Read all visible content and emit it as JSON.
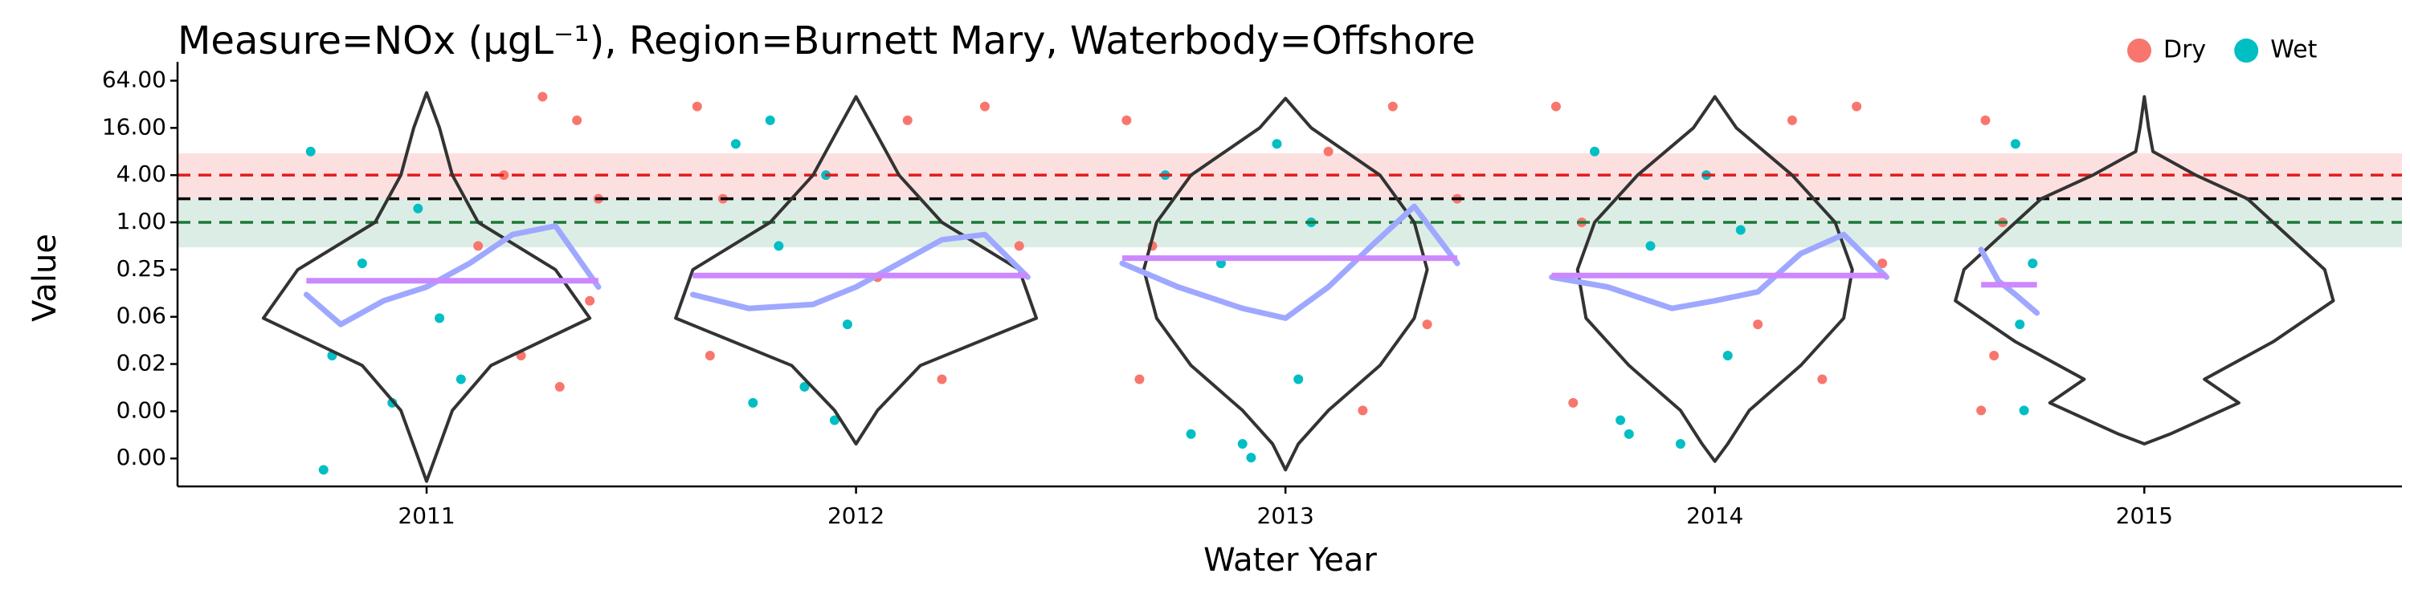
{
  "chart_data": {
    "type": "scatter",
    "title": "Measure=NOx (μgL⁻¹), Region=Burnett Mary, Waterbody=Offshore",
    "xlabel": "Water Year",
    "ylabel": "Value",
    "yscale": "log2",
    "legend": "top-right",
    "xlim": [
      2010.42,
      2015.6
    ],
    "xticks": [
      2011,
      2012,
      2013,
      2014,
      2015
    ],
    "ylim": [
      0.00043,
      88
    ],
    "yticks": [
      {
        "value": 64,
        "label": "64.00"
      },
      {
        "value": 16,
        "label": "16.00"
      },
      {
        "value": 4,
        "label": "4.00"
      },
      {
        "value": 1,
        "label": "1.00"
      },
      {
        "value": 0.25,
        "label": "0.25"
      },
      {
        "value": 0.0625,
        "label": "0.06"
      },
      {
        "value": 0.015625,
        "label": "0.02"
      },
      {
        "value": 0.00390625,
        "label": "0.00"
      },
      {
        "value": 0.0009765625,
        "label": "0.00"
      }
    ],
    "bands": [
      {
        "from": 2,
        "to": 7.6,
        "color": "#fbd3d3"
      },
      {
        "from": 0.48,
        "to": 2,
        "color": "#cde6da"
      }
    ],
    "ref_lines": [
      {
        "value": 4,
        "color": "#e41a1c"
      },
      {
        "value": 2,
        "color": "#000000"
      },
      {
        "value": 1,
        "color": "#1b7837"
      }
    ],
    "series": [
      {
        "name": "Dry",
        "color": "#F8766D",
        "x": [
          2011.12,
          2011.18,
          2011.22,
          2011.27,
          2011.31,
          2011.35,
          2011.38,
          2011.4,
          2011.63,
          2011.66,
          2011.69,
          2012.05,
          2012.12,
          2012.2,
          2012.3,
          2012.38,
          2012.63,
          2012.66,
          2012.69,
          2013.1,
          2013.18,
          2013.25,
          2013.33,
          2013.4,
          2013.63,
          2013.67,
          2013.69,
          2014.1,
          2014.18,
          2014.25,
          2014.33,
          2014.39,
          2014.63,
          2014.65,
          2014.67,
          2014.62
        ],
        "values": [
          0.5,
          4,
          0.02,
          40,
          0.008,
          20,
          0.1,
          2,
          30,
          0.02,
          2,
          0.2,
          20,
          0.01,
          30,
          0.5,
          20,
          0.01,
          0.5,
          8,
          0.004,
          30,
          0.05,
          2,
          30,
          0.005,
          1,
          0.05,
          20,
          0.01,
          30,
          0.3,
          20,
          0.02,
          1,
          0.004
        ]
      },
      {
        "name": "Wet",
        "color": "#00BFC4",
        "x": [
          2010.73,
          2010.78,
          2010.85,
          2010.92,
          2010.98,
          2011.03,
          2011.08,
          2010.76,
          2011.72,
          2011.76,
          2011.82,
          2011.88,
          2011.93,
          2011.98,
          2011.8,
          2011.95,
          2012.72,
          2012.78,
          2012.85,
          2012.92,
          2012.98,
          2013.03,
          2013.06,
          2012.9,
          2013.72,
          2013.78,
          2013.85,
          2013.92,
          2013.98,
          2014.03,
          2014.06,
          2013.8,
          2014.7,
          2014.72,
          2014.74,
          2014.71
        ],
        "values": [
          8,
          0.02,
          0.3,
          0.005,
          1.5,
          0.06,
          0.01,
          0.0007,
          10,
          0.005,
          0.5,
          0.008,
          4,
          0.05,
          20,
          0.003,
          4,
          0.002,
          0.3,
          0.001,
          10,
          0.01,
          1,
          0.0015,
          8,
          0.003,
          0.5,
          0.0015,
          4,
          0.02,
          0.8,
          0.002,
          10,
          0.004,
          0.3,
          0.05
        ]
      }
    ],
    "violins": [
      {
        "x": 2011,
        "y": [
          45,
          16,
          4,
          1,
          0.25,
          0.06,
          0.015,
          0.004,
          0.001,
          0.0005
        ],
        "width": [
          0,
          0.03,
          0.06,
          0.12,
          0.3,
          0.38,
          0.15,
          0.06,
          0.02,
          0
        ]
      },
      {
        "x": 2012,
        "y": [
          40,
          16,
          4,
          1,
          0.25,
          0.06,
          0.015,
          0.004,
          0.0015
        ],
        "width": [
          0,
          0.04,
          0.1,
          0.2,
          0.38,
          0.42,
          0.15,
          0.05,
          0
        ]
      },
      {
        "x": 2013,
        "y": [
          38,
          16,
          4,
          1,
          0.25,
          0.06,
          0.015,
          0.004,
          0.0015,
          0.0007
        ],
        "width": [
          0,
          0.06,
          0.22,
          0.3,
          0.33,
          0.3,
          0.22,
          0.1,
          0.03,
          0
        ]
      },
      {
        "x": 2014,
        "y": [
          40,
          16,
          4,
          1,
          0.25,
          0.06,
          0.015,
          0.004,
          0.0015,
          0.0009
        ],
        "width": [
          0,
          0.05,
          0.18,
          0.28,
          0.32,
          0.3,
          0.2,
          0.08,
          0.03,
          0
        ]
      },
      {
        "x": 2015,
        "y": [
          40,
          16,
          8,
          4,
          2,
          1,
          0.25,
          0.1,
          0.03,
          0.01,
          0.005,
          0.002,
          0.0015
        ],
        "width": [
          0,
          0.01,
          0.02,
          0.12,
          0.24,
          0.3,
          0.42,
          0.44,
          0.3,
          0.14,
          0.22,
          0.06,
          0
        ]
      }
    ],
    "trends": [
      {
        "color": "#9fa8ff",
        "x": [
          2010.72,
          2010.8,
          2010.9,
          2011.0,
          2011.1,
          2011.2,
          2011.3,
          2011.4
        ],
        "values": [
          0.12,
          0.05,
          0.1,
          0.15,
          0.3,
          0.7,
          0.9,
          0.15
        ]
      },
      {
        "color": "#9fa8ff",
        "x": [
          2011.62,
          2011.75,
          2011.9,
          2012.0,
          2012.1,
          2012.2,
          2012.3,
          2012.4
        ],
        "values": [
          0.12,
          0.08,
          0.09,
          0.15,
          0.3,
          0.6,
          0.7,
          0.2
        ]
      },
      {
        "color": "#9fa8ff",
        "x": [
          2012.62,
          2012.75,
          2012.9,
          2013.0,
          2013.1,
          2013.2,
          2013.3,
          2013.4
        ],
        "values": [
          0.3,
          0.15,
          0.08,
          0.06,
          0.15,
          0.5,
          1.6,
          0.3
        ]
      },
      {
        "color": "#9fa8ff",
        "x": [
          2013.62,
          2013.75,
          2013.9,
          2014.0,
          2014.1,
          2014.2,
          2014.3,
          2014.4
        ],
        "values": [
          0.2,
          0.15,
          0.08,
          0.1,
          0.13,
          0.4,
          0.7,
          0.2
        ]
      },
      {
        "color": "#9fa8ff",
        "x": [
          2014.62,
          2014.66,
          2014.7,
          2014.75
        ],
        "values": [
          0.45,
          0.18,
          0.12,
          0.07
        ]
      }
    ],
    "means": [
      {
        "color": "#cc88ff",
        "x": [
          2010.72,
          2011.4
        ],
        "value": 0.18
      },
      {
        "color": "#cc88ff",
        "x": [
          2011.62,
          2012.4
        ],
        "value": 0.21
      },
      {
        "color": "#cc88ff",
        "x": [
          2012.62,
          2013.4
        ],
        "value": 0.35
      },
      {
        "color": "#cc88ff",
        "x": [
          2013.62,
          2014.4
        ],
        "value": 0.21
      },
      {
        "color": "#cc88ff",
        "x": [
          2014.62,
          2014.75
        ],
        "value": 0.16
      }
    ]
  }
}
